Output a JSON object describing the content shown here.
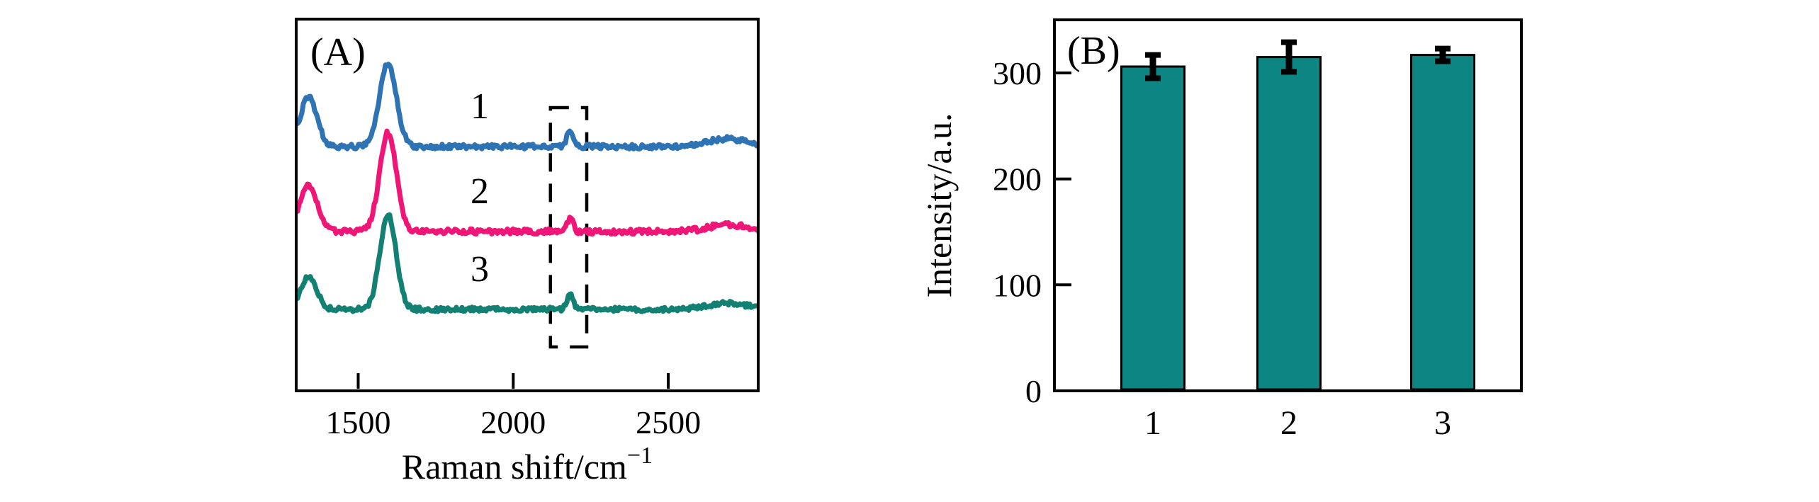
{
  "figure": {
    "background": "#ffffff",
    "description": "Two-panel Raman figure"
  },
  "chart_data": [
    {
      "type": "line",
      "panel_label": "(A)",
      "xlabel": {
        "text": "Raman shift/cm",
        "sup": "−1"
      },
      "x_range": [
        1300,
        2790
      ],
      "x_ticks": [
        1500,
        2000,
        2500
      ],
      "y_axis_ticks": "none",
      "grid": false,
      "highlight_box": {
        "x_from": 2120,
        "x_to": 2237,
        "style": "dashed",
        "color": "#000000"
      },
      "series": [
        {
          "name": "1",
          "color": "#2e74b5",
          "baseline_au": 345,
          "noise_au": 3.4,
          "peaks": [
            {
              "center": 1340,
              "sigma": 27,
              "height": 70
            },
            {
              "center": 1596,
              "sigma": 27,
              "height": 118
            },
            {
              "center": 2183,
              "sigma": 10,
              "height": 23
            },
            {
              "center": 2690,
              "sigma": 62,
              "height": 11
            }
          ]
        },
        {
          "name": "2",
          "color": "#ef1677",
          "baseline_au": 225,
          "noise_au": 3.8,
          "peaks": [
            {
              "center": 1340,
              "sigma": 28,
              "height": 64
            },
            {
              "center": 1596,
              "sigma": 27,
              "height": 140
            },
            {
              "center": 2183,
              "sigma": 10,
              "height": 18
            },
            {
              "center": 2690,
              "sigma": 62,
              "height": 10
            }
          ]
        },
        {
          "name": "3",
          "color": "#128173",
          "baseline_au": 115,
          "noise_au": 3.2,
          "peaks": [
            {
              "center": 1340,
              "sigma": 26,
              "height": 46
            },
            {
              "center": 1596,
              "sigma": 26,
              "height": 135
            },
            {
              "center": 2183,
              "sigma": 10,
              "height": 22
            },
            {
              "center": 2690,
              "sigma": 62,
              "height": 9
            }
          ]
        }
      ]
    },
    {
      "type": "bar",
      "panel_label": "(B)",
      "ylabel": "Intensity/a.u.",
      "categories": [
        "1",
        "2",
        "3"
      ],
      "values": [
        306,
        315,
        317
      ],
      "errors": [
        11,
        14,
        6
      ],
      "y_ticks": [
        0,
        100,
        200,
        300
      ],
      "ylim": [
        0,
        350
      ],
      "grid": false,
      "bar_color": "#0d8683",
      "bar_edge_color": "#000000",
      "error_color": "#000000"
    }
  ]
}
